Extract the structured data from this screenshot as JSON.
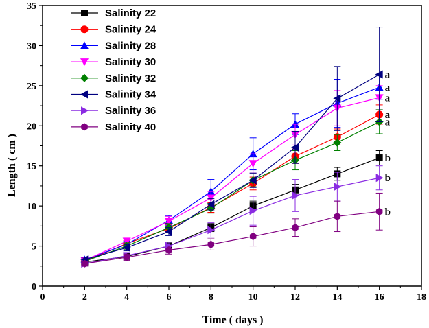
{
  "chart_data": {
    "type": "line",
    "title": "",
    "xlabel": "Time ( days )",
    "ylabel": "Length ( cm )",
    "xlim": [
      0,
      18
    ],
    "ylim": [
      0,
      35
    ],
    "xticks": [
      0,
      2,
      4,
      6,
      8,
      10,
      12,
      14,
      16,
      18
    ],
    "yticks": [
      0,
      5,
      10,
      15,
      20,
      25,
      30,
      35
    ],
    "grid": false,
    "legend_position": "top-left",
    "x": [
      2,
      4,
      6,
      8,
      10,
      12,
      14,
      16
    ],
    "series": [
      {
        "name": "Salinity 22",
        "color": "#000000",
        "marker": "square",
        "values": [
          3.0,
          3.7,
          5.0,
          7.3,
          10.0,
          12.0,
          14.0,
          16.0
        ],
        "errors": [
          0.3,
          0.3,
          0.4,
          0.5,
          0.6,
          0.7,
          0.8,
          0.9
        ]
      },
      {
        "name": "Salinity 24",
        "color": "#ff0000",
        "marker": "circle",
        "values": [
          3.1,
          5.3,
          7.2,
          9.8,
          12.8,
          16.2,
          18.6,
          21.4
        ],
        "errors": [
          0.3,
          0.4,
          0.5,
          0.6,
          0.8,
          0.9,
          1.0,
          1.2
        ]
      },
      {
        "name": "Salinity 28",
        "color": "#0000ff",
        "marker": "triangle-up",
        "values": [
          3.3,
          5.2,
          8.2,
          11.8,
          16.5,
          20.2,
          22.8,
          24.8
        ],
        "errors": [
          0.3,
          0.4,
          0.6,
          1.5,
          2.0,
          1.3,
          3.0,
          1.5
        ]
      },
      {
        "name": "Salinity 30",
        "color": "#ff00ff",
        "marker": "triangle-down",
        "values": [
          3.2,
          5.6,
          8.1,
          11.0,
          15.3,
          18.9,
          22.2,
          23.5
        ],
        "errors": [
          0.3,
          0.4,
          0.6,
          0.8,
          1.2,
          1.3,
          2.2,
          1.5
        ]
      },
      {
        "name": "Salinity 32",
        "color": "#008000",
        "marker": "diamond",
        "values": [
          3.1,
          5.0,
          7.3,
          9.7,
          13.2,
          15.7,
          17.9,
          20.5
        ],
        "errors": [
          0.3,
          0.4,
          0.5,
          0.6,
          0.8,
          1.2,
          1.0,
          1.5
        ]
      },
      {
        "name": "Salinity 34",
        "color": "#000080",
        "marker": "triangle-left",
        "values": [
          3.3,
          4.8,
          6.8,
          10.2,
          13.2,
          17.3,
          23.4,
          26.4
        ],
        "errors": [
          0.3,
          0.4,
          0.5,
          0.7,
          0.9,
          2.0,
          4.0,
          5.9
        ]
      },
      {
        "name": "Salinity 36",
        "color": "#8a2be2",
        "marker": "triangle-right",
        "values": [
          2.8,
          3.8,
          5.0,
          7.0,
          9.4,
          11.3,
          12.4,
          13.5
        ],
        "errors": [
          0.3,
          0.4,
          0.5,
          0.9,
          1.8,
          2.0,
          1.8,
          1.5
        ]
      },
      {
        "name": "Salinity 40",
        "color": "#800080",
        "marker": "hexagon",
        "values": [
          2.8,
          3.6,
          4.5,
          5.2,
          6.2,
          7.3,
          8.7,
          9.3
        ],
        "errors": [
          0.3,
          0.4,
          0.5,
          0.7,
          1.2,
          1.1,
          1.9,
          2.3
        ]
      }
    ],
    "annotations": [
      {
        "text": "a",
        "x": 16,
        "y": 26.4
      },
      {
        "text": "a",
        "x": 16,
        "y": 24.8
      },
      {
        "text": "a",
        "x": 16,
        "y": 23.5
      },
      {
        "text": "a",
        "x": 16,
        "y": 21.4
      },
      {
        "text": "a",
        "x": 16,
        "y": 20.5
      },
      {
        "text": "b",
        "x": 16,
        "y": 16.0
      },
      {
        "text": "b",
        "x": 16,
        "y": 13.5
      },
      {
        "text": "b",
        "x": 16,
        "y": 9.3
      }
    ]
  }
}
